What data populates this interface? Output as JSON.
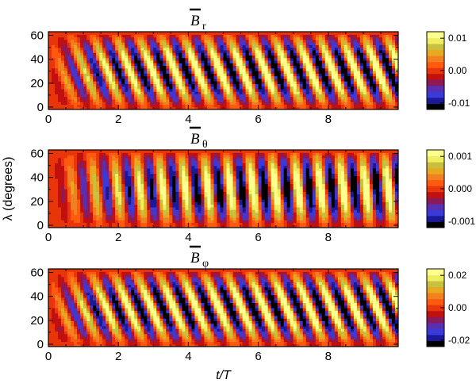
{
  "chart_data": [
    {
      "type": "heatmap",
      "title_symbol": "B",
      "title_subscript": "r",
      "xlabel": "",
      "ylabel": "",
      "xlim": [
        0,
        10
      ],
      "ylim": [
        -2,
        63
      ],
      "xticks": [
        0,
        2,
        4,
        6,
        8
      ],
      "yticks": [
        0,
        20,
        40,
        60
      ],
      "colorbar_ticks": [
        "0.01",
        "0.00",
        "-0.01"
      ],
      "colorbar_values": [
        0.01,
        0.0,
        -0.01
      ],
      "clim": [
        -0.012,
        0.012
      ],
      "cycles_per_T": 1.55,
      "stripe_tilt_T": 0.42,
      "growth_rise_T": 1.0
    },
    {
      "type": "heatmap",
      "title_symbol": "B",
      "title_subscript": "θ",
      "xlabel": "",
      "ylabel": "λ (degrees)",
      "xlim": [
        0,
        10
      ],
      "ylim": [
        -2,
        63
      ],
      "xticks": [
        0,
        2,
        4,
        6,
        8
      ],
      "yticks": [
        0,
        20,
        40,
        60
      ],
      "colorbar_ticks": [
        "0.001",
        "0.000",
        "-0.001"
      ],
      "colorbar_values": [
        0.001,
        0.0,
        -0.001
      ],
      "clim": [
        -0.0012,
        0.0012
      ],
      "cycles_per_T": 1.55,
      "stripe_tilt_T": 0.12,
      "growth_rise_T": 1.6
    },
    {
      "type": "heatmap",
      "title_symbol": "B",
      "title_subscript": "φ",
      "xlabel": "t/T",
      "ylabel": "",
      "xlim": [
        0,
        10
      ],
      "ylim": [
        -2,
        63
      ],
      "xticks": [
        0,
        2,
        4,
        6,
        8
      ],
      "yticks": [
        0,
        20,
        40,
        60
      ],
      "colorbar_ticks": [
        "0.02",
        "0.00",
        "-0.02"
      ],
      "colorbar_values": [
        0.02,
        0.0,
        -0.02
      ],
      "clim": [
        -0.024,
        0.024
      ],
      "cycles_per_T": 1.55,
      "stripe_tilt_T": 0.45,
      "growth_rise_T": 0.9
    }
  ],
  "colormap": [
    "#000000",
    "#1a1a99",
    "#3a3ad9",
    "#5a2fb0",
    "#8a1a5a",
    "#c0100f",
    "#e8350a",
    "#ff5a10",
    "#f08020",
    "#e8a820",
    "#c8c040",
    "#f0ee60",
    "#ffff90"
  ]
}
